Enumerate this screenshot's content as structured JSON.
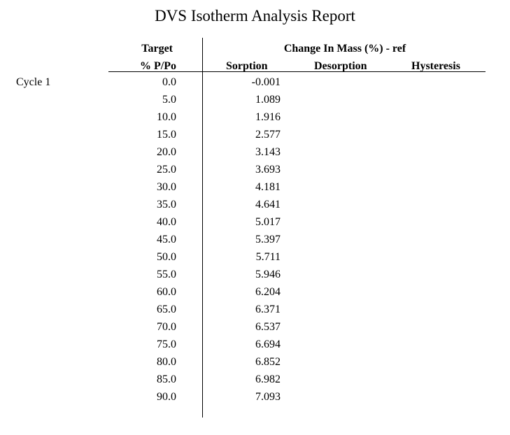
{
  "report": {
    "title": "DVS Isotherm Analysis Report"
  },
  "headers": {
    "target_line1": "Target",
    "target_line2": "% P/Po",
    "group": "Change In Mass (%) - ref",
    "sorption": "Sorption",
    "desorption": "Desorption",
    "hysteresis": "Hysteresis"
  },
  "cycle": {
    "label": "Cycle 1"
  },
  "rows": [
    {
      "target": "0.0",
      "sorption": "-0.001"
    },
    {
      "target": "5.0",
      "sorption": "1.089"
    },
    {
      "target": "10.0",
      "sorption": "1.916"
    },
    {
      "target": "15.0",
      "sorption": "2.577"
    },
    {
      "target": "20.0",
      "sorption": "3.143"
    },
    {
      "target": "25.0",
      "sorption": "3.693"
    },
    {
      "target": "30.0",
      "sorption": "4.181"
    },
    {
      "target": "35.0",
      "sorption": "4.641"
    },
    {
      "target": "40.0",
      "sorption": "5.017"
    },
    {
      "target": "45.0",
      "sorption": "5.397"
    },
    {
      "target": "50.0",
      "sorption": "5.711"
    },
    {
      "target": "55.0",
      "sorption": "5.946"
    },
    {
      "target": "60.0",
      "sorption": "6.204"
    },
    {
      "target": "65.0",
      "sorption": "6.371"
    },
    {
      "target": "70.0",
      "sorption": "6.537"
    },
    {
      "target": "75.0",
      "sorption": "6.694"
    },
    {
      "target": "80.0",
      "sorption": "6.852"
    },
    {
      "target": "85.0",
      "sorption": "6.982"
    },
    {
      "target": "90.0",
      "sorption": "7.093"
    }
  ]
}
